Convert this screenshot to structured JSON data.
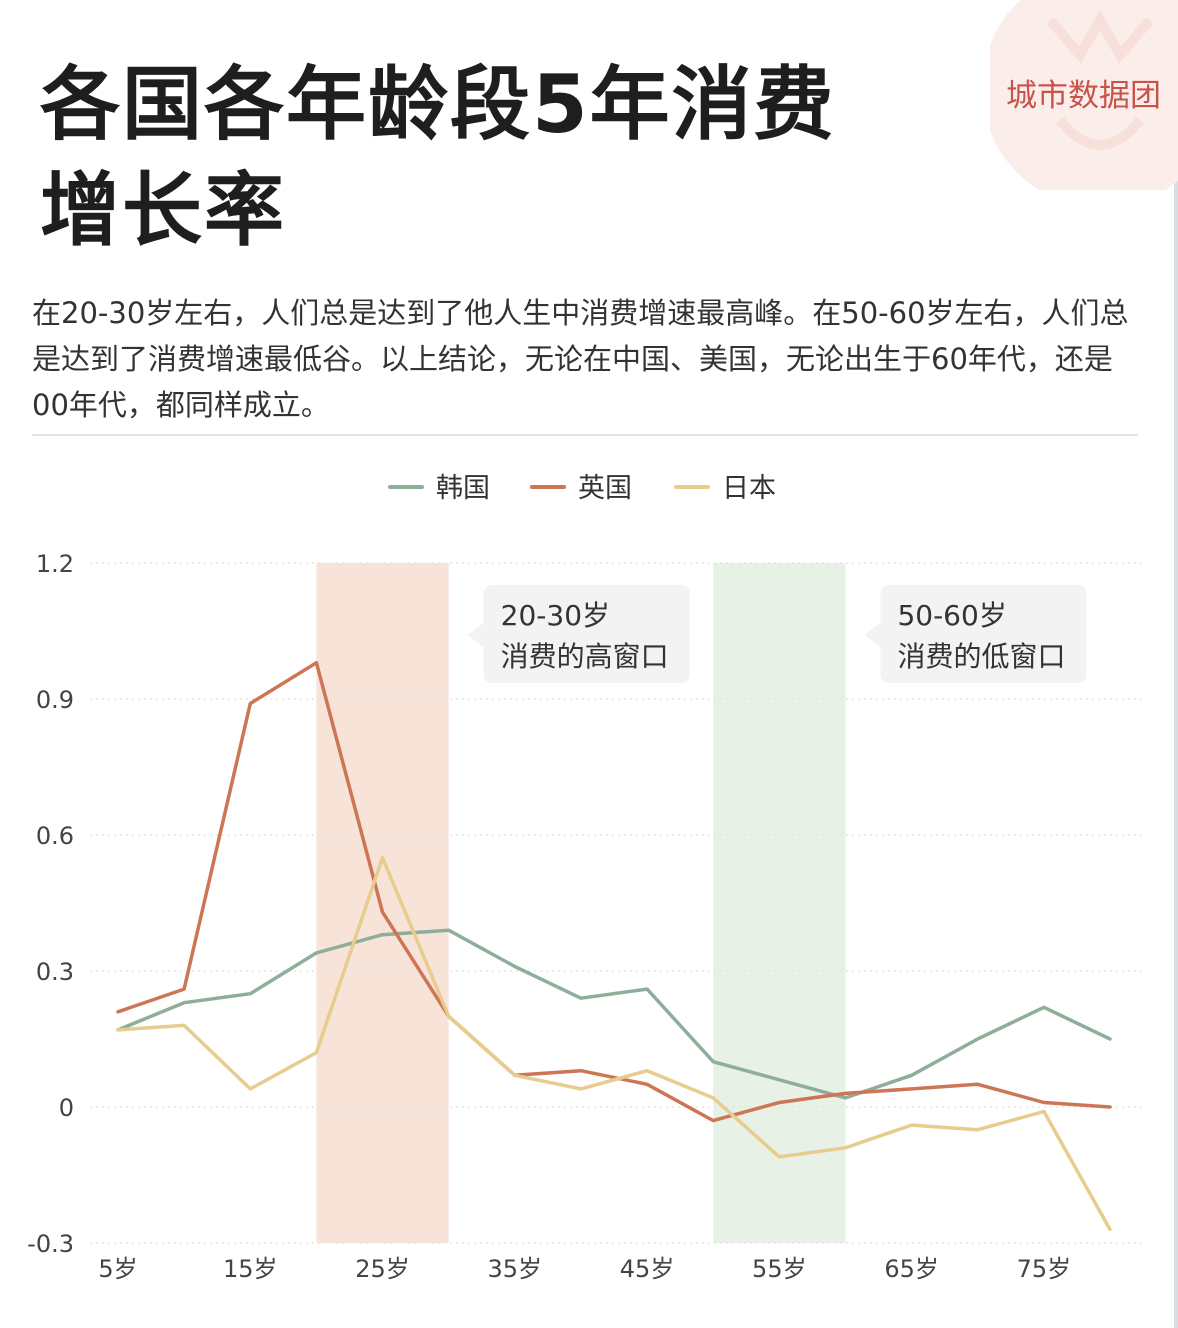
{
  "header": {
    "title_line1": "各国各年龄段5年消费",
    "title_line2": "增长率",
    "brand": "城市数据团",
    "description": "在20-30岁左右，人们总是达到了他人生中消费增速最高峰。在50-60岁左右，人们总是达到了消费增速最低谷。以上结论，无论在中国、美国，无论出生于60年代，还是00年代，都同样成立。"
  },
  "chart_data": {
    "type": "line",
    "x": [
      5,
      10,
      15,
      20,
      25,
      30,
      35,
      40,
      45,
      50,
      55,
      60,
      65,
      70,
      75,
      80
    ],
    "x_tick_labels": [
      "5岁",
      "15岁",
      "25岁",
      "35岁",
      "45岁",
      "55岁",
      "65岁",
      "75岁"
    ],
    "x_tick_values": [
      5,
      15,
      25,
      35,
      45,
      55,
      65,
      75
    ],
    "y_ticks": [
      {
        "value": 1.2,
        "label": "1.2"
      },
      {
        "value": 0.9,
        "label": "0.9"
      },
      {
        "value": 0.6,
        "label": "0.6"
      },
      {
        "value": 0.3,
        "label": "0.3"
      },
      {
        "value": 0,
        "label": "0"
      },
      {
        "value": -0.3,
        "label": "-0.3"
      }
    ],
    "ylim": [
      -0.3,
      1.2
    ],
    "legend_position": "top-center",
    "grid": "horizontal-dashed",
    "series": [
      {
        "name": "韩国",
        "color": "#8fae9a",
        "values": [
          0.17,
          0.23,
          0.25,
          0.34,
          0.38,
          0.39,
          0.31,
          0.24,
          0.26,
          0.1,
          0.06,
          0.02,
          0.07,
          0.15,
          0.22,
          0.15
        ]
      },
      {
        "name": "英国",
        "color": "#cd7655",
        "values": [
          0.21,
          0.26,
          0.89,
          0.98,
          0.43,
          0.2,
          0.07,
          0.08,
          0.05,
          -0.03,
          0.01,
          0.03,
          0.04,
          0.05,
          0.01,
          0.0
        ]
      },
      {
        "name": "日本",
        "color": "#e8cc8e",
        "values": [
          0.17,
          0.18,
          0.04,
          0.12,
          0.55,
          0.2,
          0.07,
          0.04,
          0.08,
          0.02,
          -0.11,
          -0.09,
          -0.04,
          -0.05,
          -0.01,
          -0.27
        ]
      }
    ],
    "bands": [
      {
        "x0": 20,
        "x1": 30,
        "color": "#f8e3d9",
        "label_line1": "20-30岁",
        "label_line2": "消费的高窗口"
      },
      {
        "x0": 50,
        "x1": 60,
        "color": "#e7f1e6",
        "label_line1": "50-60岁",
        "label_line2": "消费的低窗口"
      }
    ]
  }
}
